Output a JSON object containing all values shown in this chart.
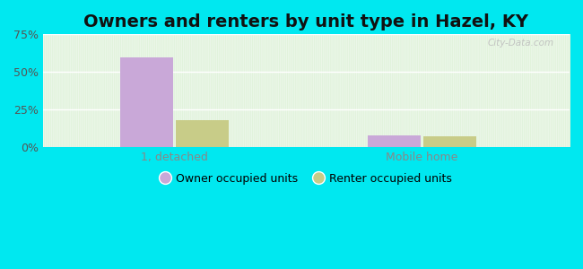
{
  "title": "Owners and renters by unit type in Hazel, KY",
  "categories": [
    "1, detached",
    "Mobile home"
  ],
  "owner_values": [
    60.0,
    8.0
  ],
  "renter_values": [
    18.0,
    7.0
  ],
  "owner_color": "#c9a8d8",
  "renter_color": "#c8cc88",
  "owner_label": "Owner occupied units",
  "renter_label": "Renter occupied units",
  "ylim": [
    0,
    75
  ],
  "yticks": [
    0,
    25,
    50,
    75
  ],
  "yticklabels": [
    "0%",
    "25%",
    "50%",
    "75%"
  ],
  "background_outer": "#00e8f0",
  "bar_width": 0.1,
  "title_fontsize": 14,
  "watermark": "City-Data.com",
  "axis_bg_top": "#f5fbf5",
  "axis_bg_bottom": "#d8efd0"
}
